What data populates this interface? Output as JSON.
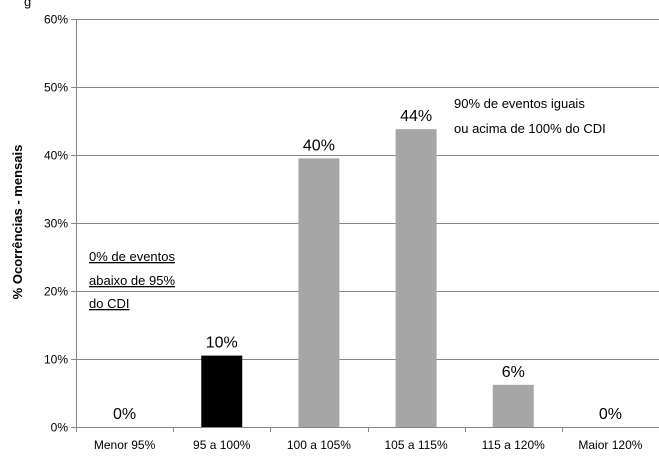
{
  "chart_data": {
    "type": "bar",
    "title": "",
    "top_clipped_text": "g",
    "xlabel": "",
    "ylabel": "% Ocorrências - mensais",
    "categories": [
      "Menor 95%",
      "95 a 100%",
      "100 a 105%",
      "105 a 115%",
      "115 a 120%",
      "Maior 120%"
    ],
    "values": [
      0,
      10.5,
      39.5,
      43.8,
      6.2,
      0
    ],
    "data_labels": [
      "0%",
      "10%",
      "40%",
      "44%",
      "6%",
      "0%"
    ],
    "bar_colors": [
      "#A6A6A6",
      "#000000",
      "#A6A6A6",
      "#A6A6A6",
      "#A6A6A6",
      "#A6A6A6"
    ],
    "ylim": [
      0,
      60
    ],
    "yticks": [
      "0%",
      "10%",
      "20%",
      "30%",
      "40%",
      "50%",
      "60%"
    ],
    "grid": true,
    "legend": "none",
    "annotations": {
      "below_95": [
        "0% de eventos",
        "abaixo de 95%",
        "do CDI"
      ],
      "above_100": [
        "90% de eventos iguais",
        "ou acima de 100% do CDI"
      ]
    }
  }
}
